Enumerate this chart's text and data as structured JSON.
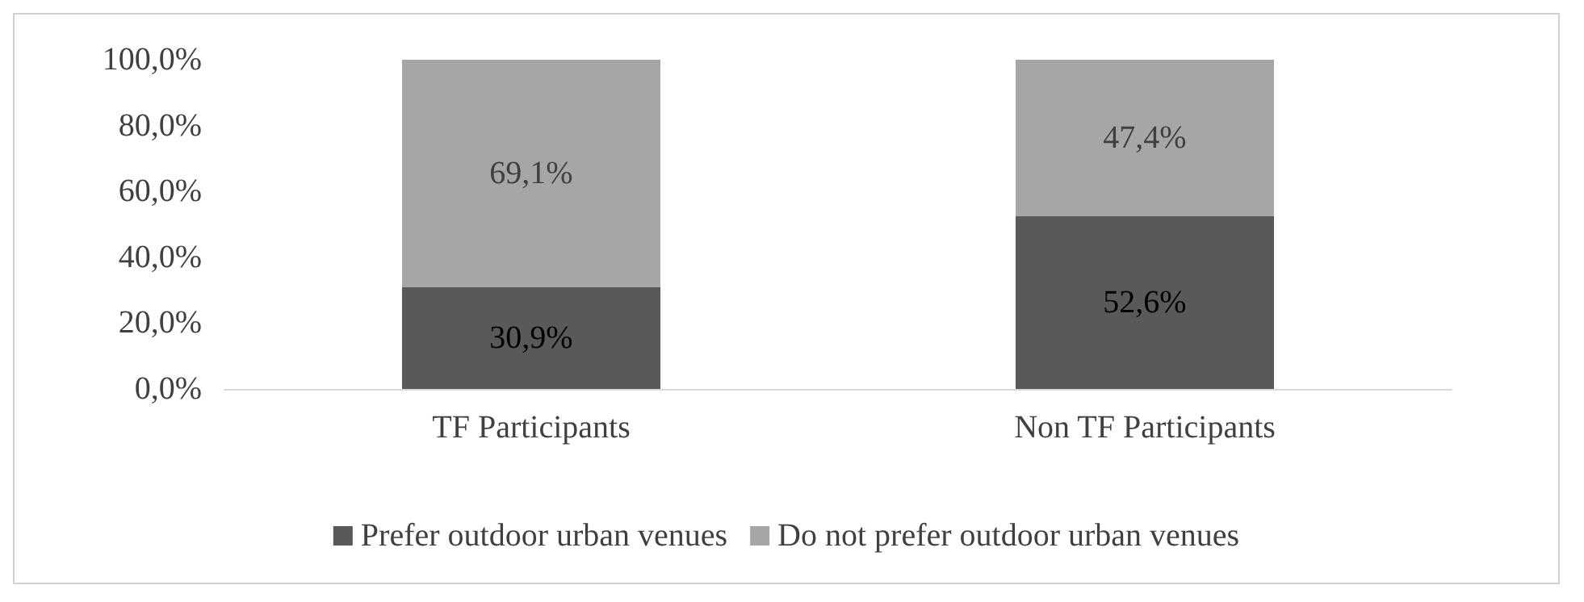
{
  "chart_data": {
    "type": "bar",
    "stacked": true,
    "categories": [
      "TF Participants",
      "Non TF Participants"
    ],
    "series": [
      {
        "name": "Prefer outdoor urban venues",
        "color": "#595959",
        "values": [
          30.9,
          52.6
        ],
        "value_labels": [
          "30,9%",
          "52,6%"
        ]
      },
      {
        "name": "Do not prefer outdoor urban venues",
        "color": "#a6a6a6",
        "values": [
          69.1,
          47.4
        ],
        "value_labels": [
          "69,1%",
          "47,4%"
        ]
      }
    ],
    "ylim": [
      0,
      100
    ],
    "yticks": [
      {
        "value": 0,
        "label": "0,0%"
      },
      {
        "value": 20,
        "label": "20,0%"
      },
      {
        "value": 40,
        "label": "40,0%"
      },
      {
        "value": 60,
        "label": "60,0%"
      },
      {
        "value": 80,
        "label": "80,0%"
      },
      {
        "value": 100,
        "label": "100,0%"
      }
    ],
    "grid": false,
    "legend": "bottom"
  }
}
